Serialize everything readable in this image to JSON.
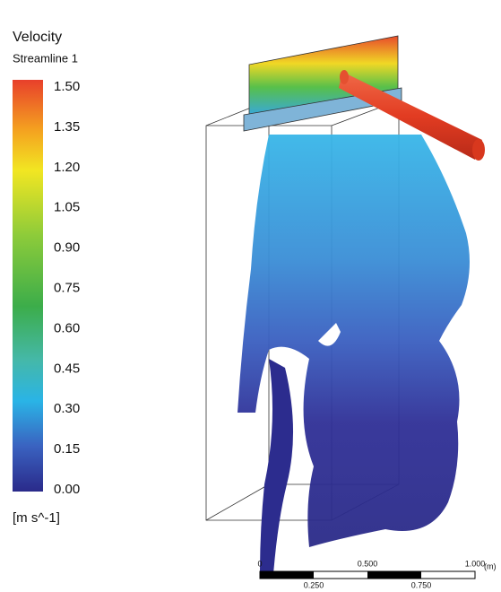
{
  "legend": {
    "title": "Velocity",
    "subtitle": "Streamline 1",
    "ticks": [
      {
        "value": 1.5,
        "label": "1.50"
      },
      {
        "value": 1.35,
        "label": "1.35"
      },
      {
        "value": 1.2,
        "label": "1.20"
      },
      {
        "value": 1.05,
        "label": "1.05"
      },
      {
        "value": 0.9,
        "label": "0.90"
      },
      {
        "value": 0.75,
        "label": "0.75"
      },
      {
        "value": 0.6,
        "label": "0.60"
      },
      {
        "value": 0.45,
        "label": "0.45"
      },
      {
        "value": 0.3,
        "label": "0.30"
      },
      {
        "value": 0.15,
        "label": "0.15"
      },
      {
        "value": 0,
        "label": "0.00"
      }
    ],
    "unit": "[m s^-1]"
  },
  "scale_bar": {
    "unit": "(m)",
    "upper_ticks": [
      {
        "value": 0,
        "label": "0"
      },
      {
        "value": 0.5,
        "label": "0.500"
      },
      {
        "value": 1,
        "label": "1.000"
      }
    ],
    "lower_ticks": [
      {
        "value": 0.25,
        "label": "0.250"
      },
      {
        "value": 0.75,
        "label": "0.750"
      }
    ]
  }
}
